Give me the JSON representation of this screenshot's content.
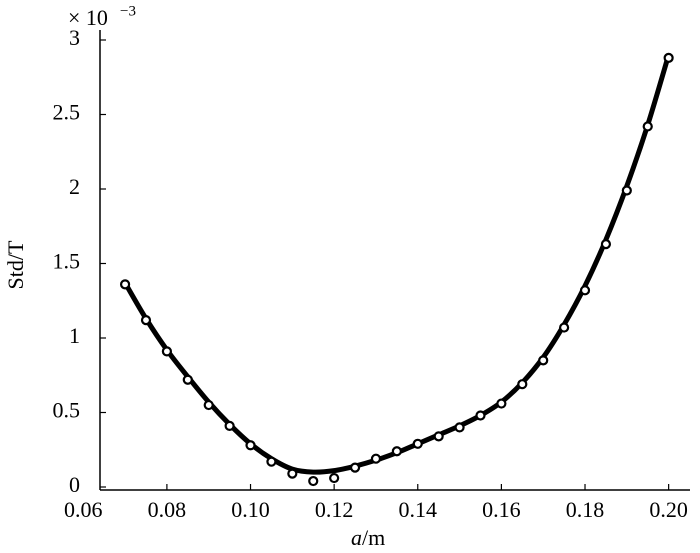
{
  "chart_data": {
    "type": "scatter-fit",
    "x_label_var": "a",
    "x_label_unit": "/m",
    "y_label": "Std/T",
    "multiplier": "× 10",
    "multiplier_exponent": "−3",
    "x": [
      0.07,
      0.075,
      0.08,
      0.085,
      0.09,
      0.095,
      0.1,
      0.105,
      0.11,
      0.115,
      0.12,
      0.125,
      0.13,
      0.135,
      0.14,
      0.145,
      0.15,
      0.155,
      0.16,
      0.165,
      0.17,
      0.175,
      0.18,
      0.185,
      0.19,
      0.195,
      0.2
    ],
    "series": [
      {
        "style": "markers",
        "color": "#000000",
        "values": [
          1.36,
          1.12,
          0.91,
          0.72,
          0.55,
          0.41,
          0.28,
          0.17,
          0.09,
          0.04,
          0.06,
          0.13,
          0.19,
          0.24,
          0.29,
          0.34,
          0.4,
          0.48,
          0.56,
          0.69,
          0.85,
          1.07,
          1.32,
          1.63,
          1.99,
          2.42,
          2.88
        ]
      },
      {
        "style": "line",
        "color": "#000000",
        "values": [
          1.37,
          1.13,
          0.92,
          0.74,
          0.57,
          0.42,
          0.29,
          0.19,
          0.12,
          0.1,
          0.11,
          0.14,
          0.18,
          0.23,
          0.29,
          0.35,
          0.41,
          0.48,
          0.57,
          0.7,
          0.87,
          1.09,
          1.35,
          1.66,
          2.02,
          2.43,
          2.9
        ]
      }
    ],
    "xlim": [
      0.064,
      0.202
    ],
    "xticks": [
      0.06,
      0.08,
      {
        "value": 0.1,
        "label": "0.10"
      },
      0.12,
      0.14,
      0.16,
      0.18,
      {
        "value": 0.2,
        "label": "0.20"
      }
    ],
    "ylim": [
      0,
      3
    ],
    "yticks": [
      0,
      0.5,
      1,
      1.5,
      2,
      2.5,
      3
    ]
  }
}
